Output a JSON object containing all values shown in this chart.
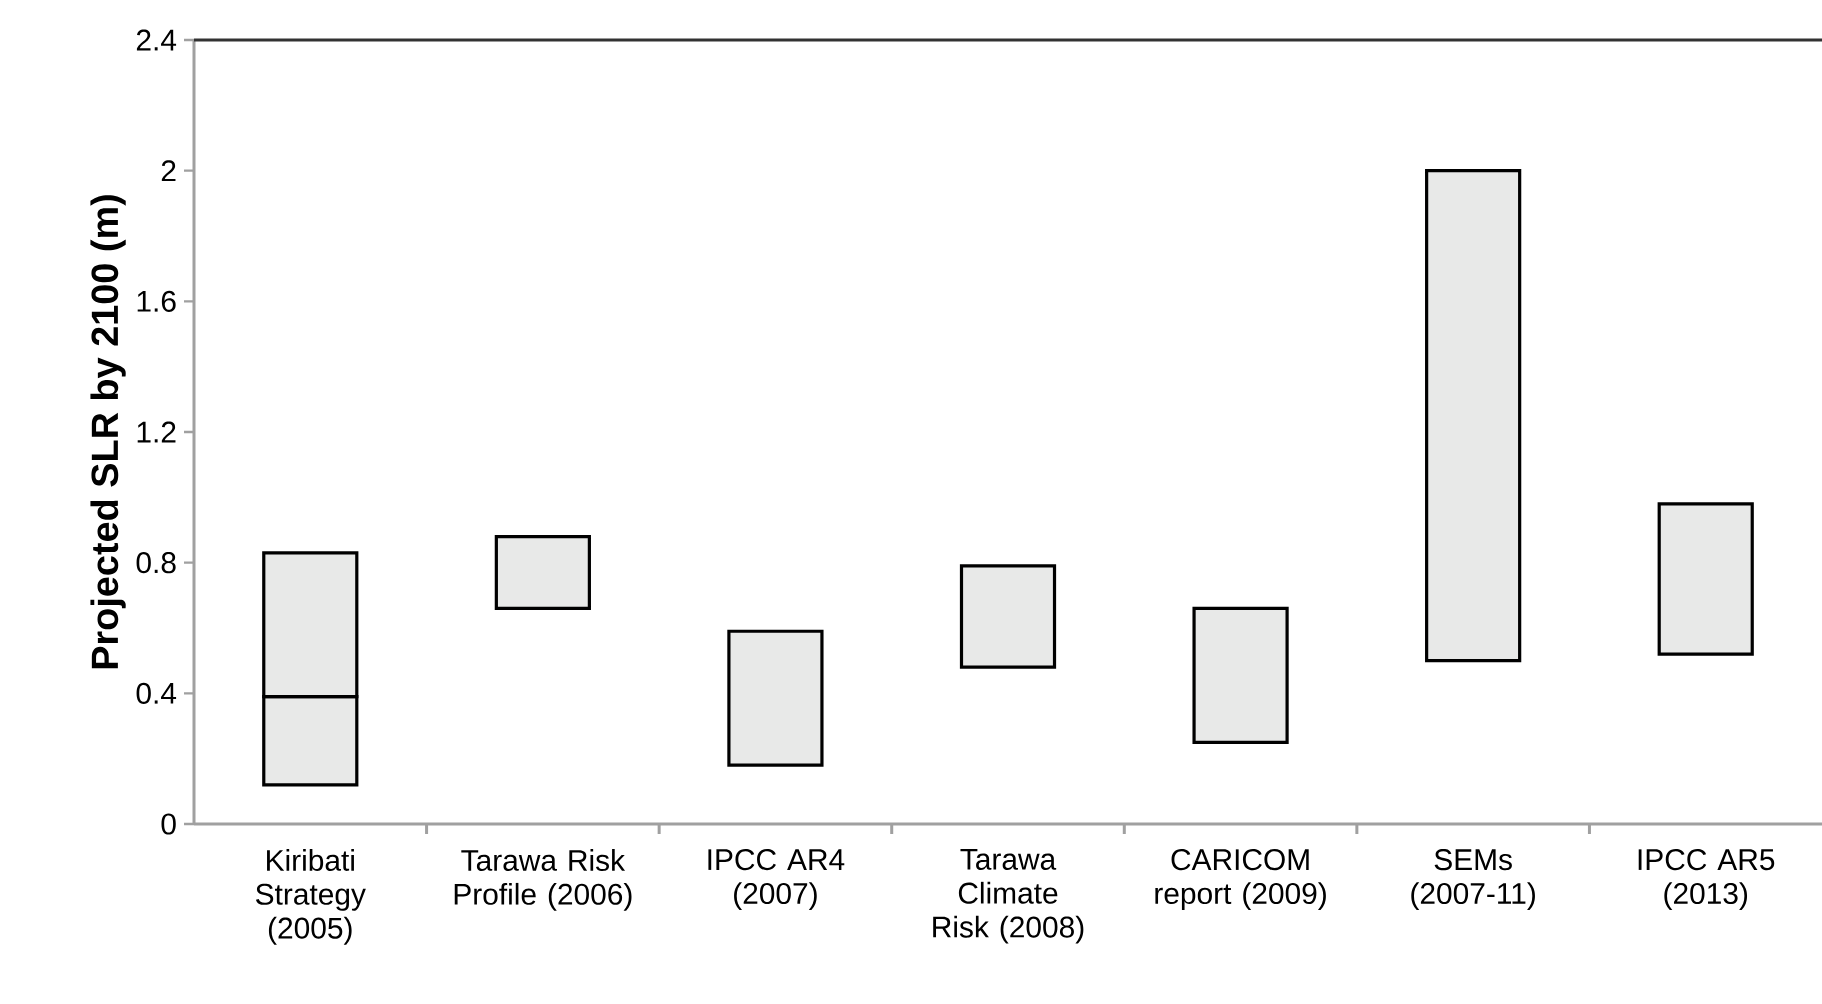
{
  "chart_data": {
    "type": "bar",
    "ylabel": "Projected SLR by 2100 (m)",
    "categories": [
      "Kiribati Strategy (2005)",
      "Tarawa Risk Profile (2006)",
      "IPCC AR4 (2007)",
      "Tarawa Climate Risk (2008)",
      "CARICOM report (2009)",
      "SEMs (2007-11)",
      "IPCC AR5 (2013)"
    ],
    "series": [
      {
        "color": "#e8e9e8",
        "base": [
          0.12,
          0.66,
          0.18,
          0.48,
          0.25,
          0.5,
          0.52
        ],
        "values": [
          0.27,
          0.22,
          0.41,
          0.31,
          0.41,
          1.5,
          0.46
        ]
      },
      {
        "color": "#e8e9e8",
        "base": [
          0.39,
          null,
          null,
          null,
          null,
          null,
          null
        ],
        "values": [
          0.44,
          null,
          null,
          null,
          null,
          null,
          null
        ]
      }
    ],
    "ylim": [
      0,
      2.4
    ],
    "yticks": [
      0,
      0.4,
      0.8,
      1.2,
      1.6,
      2,
      2.4
    ],
    "grid": false
  }
}
